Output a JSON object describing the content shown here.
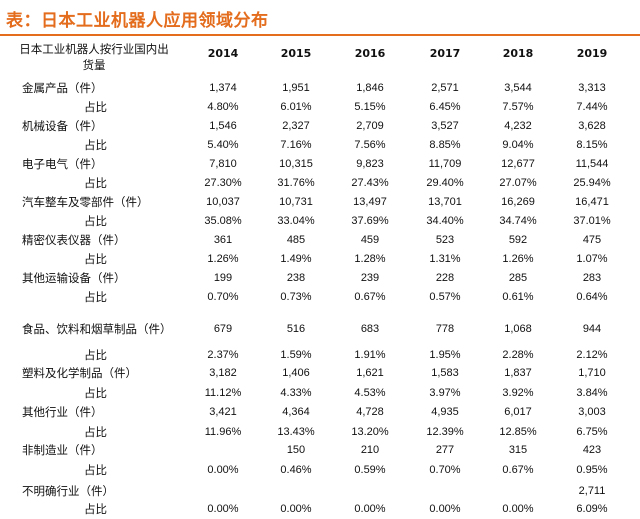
{
  "title": "表：日本工业机器人应用领域分布",
  "header_label": "日本工业机器人按行业国内出货量",
  "years": [
    "2014",
    "2015",
    "2016",
    "2017",
    "2018",
    "2019"
  ],
  "rows": [
    {
      "label": "金属产品（件）",
      "kind": "cat",
      "values": [
        "1,374",
        "1,951",
        "1,846",
        "2,571",
        "3,544",
        "3,313"
      ]
    },
    {
      "label": "占比",
      "kind": "sub",
      "values": [
        "4.80%",
        "6.01%",
        "5.15%",
        "6.45%",
        "7.57%",
        "7.44%"
      ]
    },
    {
      "label": "机械设备（件）",
      "kind": "cat",
      "values": [
        "1,546",
        "2,327",
        "2,709",
        "3,527",
        "4,232",
        "3,628"
      ]
    },
    {
      "label": "占比",
      "kind": "sub",
      "values": [
        "5.40%",
        "7.16%",
        "7.56%",
        "8.85%",
        "9.04%",
        "8.15%"
      ]
    },
    {
      "label": "电子电气（件）",
      "kind": "cat",
      "values": [
        "7,810",
        "10,315",
        "9,823",
        "11,709",
        "12,677",
        "11,544"
      ]
    },
    {
      "label": "占比",
      "kind": "sub",
      "values": [
        "27.30%",
        "31.76%",
        "27.43%",
        "29.40%",
        "27.07%",
        "25.94%"
      ]
    },
    {
      "label": "汽车整车及零部件（件）",
      "kind": "cat",
      "values": [
        "10,037",
        "10,731",
        "13,497",
        "13,701",
        "16,269",
        "16,471"
      ]
    },
    {
      "label": "占比",
      "kind": "sub",
      "values": [
        "35.08%",
        "33.04%",
        "37.69%",
        "34.40%",
        "34.74%",
        "37.01%"
      ]
    },
    {
      "label": "精密仪表仪器（件）",
      "kind": "cat",
      "values": [
        "361",
        "485",
        "459",
        "523",
        "592",
        "475"
      ]
    },
    {
      "label": "占比",
      "kind": "sub",
      "values": [
        "1.26%",
        "1.49%",
        "1.28%",
        "1.31%",
        "1.26%",
        "1.07%"
      ]
    },
    {
      "label": "其他运输设备（件）",
      "kind": "cat",
      "values": [
        "199",
        "238",
        "239",
        "228",
        "285",
        "283"
      ]
    },
    {
      "label": "占比",
      "kind": "sub",
      "values": [
        "0.70%",
        "0.73%",
        "0.67%",
        "0.57%",
        "0.61%",
        "0.64%"
      ]
    },
    {
      "label": "食品、饮料和烟草制品（件）",
      "kind": "cat",
      "values": [
        "679",
        "516",
        "683",
        "778",
        "1,068",
        "944"
      ]
    },
    {
      "label": "占比",
      "kind": "sub",
      "values": [
        "2.37%",
        "1.59%",
        "1.91%",
        "1.95%",
        "2.28%",
        "2.12%"
      ]
    },
    {
      "label": "塑料及化学制品（件）",
      "kind": "cat",
      "values": [
        "3,182",
        "1,406",
        "1,621",
        "1,583",
        "1,837",
        "1,710"
      ]
    },
    {
      "label": "占比",
      "kind": "sub",
      "values": [
        "11.12%",
        "4.33%",
        "4.53%",
        "3.97%",
        "3.92%",
        "3.84%"
      ]
    },
    {
      "label": "其他行业（件）",
      "kind": "cat",
      "values": [
        "3,421",
        "4,364",
        "4,728",
        "4,935",
        "6,017",
        "3,003"
      ]
    },
    {
      "label": "占比",
      "kind": "sub",
      "values": [
        "11.96%",
        "13.43%",
        "13.20%",
        "12.39%",
        "12.85%",
        "6.75%"
      ]
    },
    {
      "label": "非制造业（件）",
      "kind": "cat",
      "values": [
        "",
        "150",
        "210",
        "277",
        "315",
        "423"
      ]
    },
    {
      "label": "占比",
      "kind": "sub",
      "values": [
        "0.00%",
        "0.46%",
        "0.59%",
        "0.70%",
        "0.67%",
        "0.95%"
      ]
    },
    {
      "label": "不明确行业（件）",
      "kind": "cat",
      "values": [
        "",
        "",
        "",
        "",
        "",
        "2,711"
      ]
    },
    {
      "label": "占比",
      "kind": "sub",
      "values": [
        "0.00%",
        "0.00%",
        "0.00%",
        "0.00%",
        "0.00%",
        "6.09%"
      ]
    }
  ]
}
